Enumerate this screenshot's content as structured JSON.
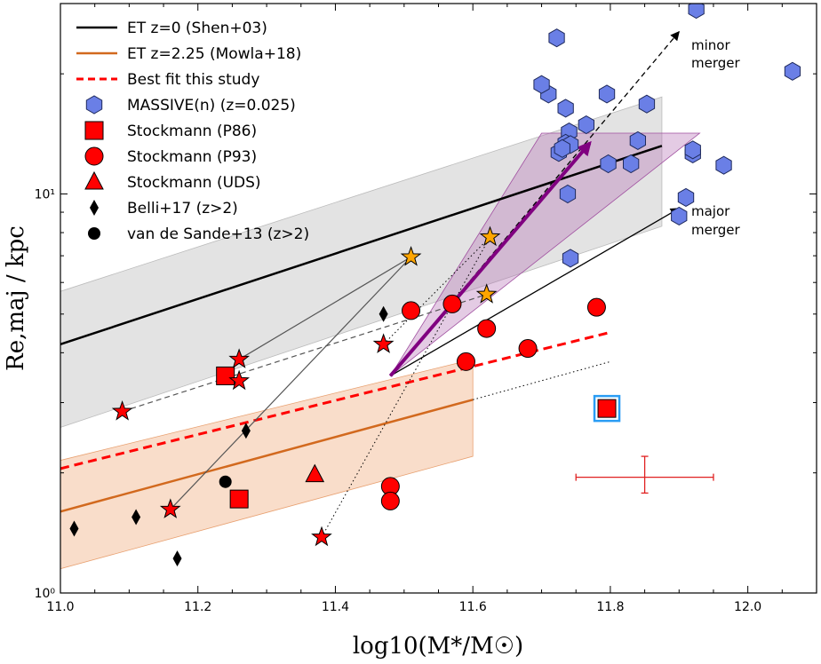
{
  "chart_data": {
    "type": "scatter",
    "xscale": "linear",
    "yscale": "log",
    "xlim": [
      11.0,
      12.1
    ],
    "ylim": [
      1.0,
      30.0
    ],
    "xlabel": "log10(M*/M☉)",
    "ylabel": "Re,maj / kpc",
    "x_ticks": [
      11.0,
      11.2,
      11.4,
      11.6,
      11.8,
      12.0
    ],
    "x_tick_labels": [
      "11.0",
      "11.2",
      "11.4",
      "11.6",
      "11.8",
      "12.0"
    ],
    "y_major_ticks": [
      1,
      10
    ],
    "y_major_labels": [
      "10⁰",
      "10¹"
    ],
    "legend": [
      {
        "label": "ET z=0 (Shen+03)",
        "kind": "line",
        "color": "#000000"
      },
      {
        "label": "ET z=2.25 (Mowla+18)",
        "kind": "line",
        "color": "#d2691e"
      },
      {
        "label": "Best fit this study",
        "kind": "dashed",
        "color": "#ff0000"
      },
      {
        "label": "MASSIVE(n) (z=0.025)",
        "kind": "hexagon",
        "color": "#6a7fe6"
      },
      {
        "label": "Stockmann (P86)",
        "kind": "square",
        "color": "#ff0000"
      },
      {
        "label": "Stockmann (P93)",
        "kind": "circle",
        "color": "#ff0000"
      },
      {
        "label": "Stockmann (UDS)",
        "kind": "triangle",
        "color": "#ff0000"
      },
      {
        "label": "Belli+17 (z>2)",
        "kind": "diamond",
        "color": "#000000"
      },
      {
        "label": "van de Sande+13 (z>2)",
        "kind": "dot",
        "color": "#000000"
      }
    ],
    "lines": {
      "shen03": {
        "x": [
          11.0,
          11.875
        ],
        "y": [
          4.2,
          13.2
        ]
      },
      "shen03_band": {
        "x": [
          11.0,
          11.875
        ],
        "y_lo": [
          2.6,
          8.3
        ],
        "y_hi": [
          5.7,
          17.5
        ]
      },
      "mowla18": {
        "x": [
          11.0,
          11.6
        ],
        "y": [
          1.6,
          3.05
        ]
      },
      "mowla18_band": {
        "x": [
          11.0,
          11.6
        ],
        "y_lo": [
          1.15,
          2.2
        ],
        "y_hi": [
          2.15,
          3.85
        ]
      },
      "mowla18_ext": {
        "x": [
          11.6,
          11.8
        ],
        "y": [
          3.05,
          3.8
        ]
      },
      "best_fit": {
        "x": [
          11.0,
          11.8
        ],
        "y": [
          2.05,
          4.5
        ]
      }
    },
    "massive": {
      "x": [
        11.925,
        11.722,
        12.065,
        11.71,
        11.7,
        11.735,
        11.795,
        11.853,
        11.765,
        11.74,
        11.735,
        11.725,
        11.742,
        11.73,
        11.84,
        11.92,
        11.92,
        11.797,
        11.83,
        11.965,
        11.738,
        11.91,
        11.9,
        11.742
      ],
      "y": [
        29.0,
        24.6,
        20.3,
        17.8,
        18.8,
        16.4,
        17.8,
        16.8,
        14.9,
        14.3,
        13.4,
        12.7,
        13.3,
        13.0,
        13.6,
        12.6,
        12.9,
        11.9,
        11.9,
        11.8,
        10.0,
        9.8,
        8.8,
        6.9
      ]
    },
    "p86": {
      "x": [
        11.24,
        11.26
      ],
      "y": [
        3.5,
        1.72
      ]
    },
    "p86_highlight": {
      "x": [
        11.795
      ],
      "y": [
        2.9
      ]
    },
    "p93": {
      "x": [
        11.57,
        11.51,
        11.62,
        11.59,
        11.68,
        11.78,
        11.48,
        11.48
      ],
      "y": [
        5.3,
        5.1,
        4.6,
        3.8,
        4.1,
        5.2,
        1.85,
        1.7
      ]
    },
    "uds": {
      "x": [
        11.37
      ],
      "y": [
        1.98
      ]
    },
    "belli17": {
      "x": [
        11.47,
        11.27,
        11.02,
        11.11,
        11.17
      ],
      "y": [
        5.0,
        2.55,
        1.45,
        1.55,
        1.22
      ]
    },
    "vandesande13": {
      "x": [
        11.24
      ],
      "y": [
        1.9
      ]
    },
    "stars_red": {
      "x": [
        11.26,
        11.26,
        11.47,
        11.09,
        11.16,
        11.38
      ],
      "y": [
        3.85,
        3.4,
        4.2,
        2.85,
        1.62,
        1.38
      ]
    },
    "stars_orange": {
      "x": [
        11.51,
        11.625,
        11.62
      ],
      "y": [
        6.95,
        7.8,
        5.6
      ]
    },
    "growth_lines": [
      {
        "from": [
          11.16,
          1.62
        ],
        "to": [
          11.51,
          6.95
        ],
        "style": "solid"
      },
      {
        "from": [
          11.26,
          3.85
        ],
        "to": [
          11.51,
          6.95
        ],
        "style": "solid"
      },
      {
        "from": [
          11.09,
          2.85
        ],
        "to": [
          11.62,
          5.6
        ],
        "style": "dashed"
      },
      {
        "from": [
          11.38,
          1.38
        ],
        "to": [
          11.625,
          7.8
        ],
        "style": "dotted"
      },
      {
        "from": [
          11.47,
          4.2
        ],
        "to": [
          11.625,
          7.8
        ],
        "style": "dotted"
      }
    ],
    "merger_arrows": {
      "minor": {
        "from": [
          11.48,
          3.5
        ],
        "to": [
          11.9,
          25.5
        ],
        "label_line1": "minor",
        "label_line2": "merger"
      },
      "major": {
        "from": [
          11.48,
          3.5
        ],
        "to": [
          11.9,
          9.2
        ],
        "label_line1": "major",
        "label_line2": "merger"
      }
    },
    "purple_arrow": {
      "from": [
        11.48,
        3.5
      ],
      "to": [
        11.77,
        13.4
      ]
    },
    "purple_cone": {
      "x": [
        11.48,
        11.7,
        11.93
      ],
      "y": [
        3.5,
        14.2,
        14.2
      ]
    },
    "dotted_fit_ext": {
      "from": [
        11.6,
        3.05
      ],
      "to": [
        11.8,
        3.8
      ]
    },
    "error_bar": {
      "x": 11.85,
      "y": 1.95,
      "xerr": 0.1,
      "y_lo": 1.78,
      "y_hi": 2.2
    }
  }
}
